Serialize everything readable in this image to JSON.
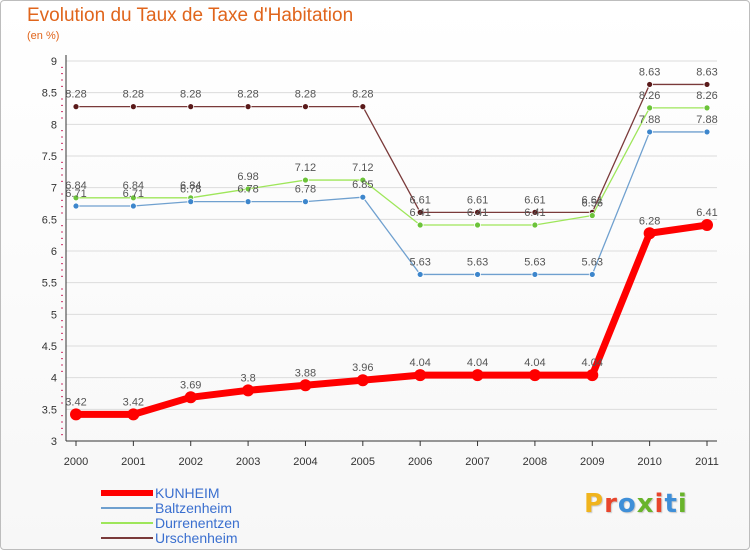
{
  "title": "Evolution du Taux de Taxe d'Habitation",
  "subtitle": "(en %)",
  "colors": {
    "title": "#e0651c",
    "legend_text": "#3a6fcf",
    "axis": "#333333",
    "grid": "#dcdcdc",
    "minor_tick": "#cc3366"
  },
  "logo": {
    "text": "Proxiti",
    "letters": [
      "P",
      "r",
      "o",
      "x",
      "i",
      "t",
      "i"
    ],
    "letter_colors": [
      "#f0b41e",
      "#e8452c",
      "#3f8fd8",
      "#69b42b",
      "#e8452c",
      "#3f8fd8",
      "#69b42b"
    ]
  },
  "chart_data": {
    "type": "line",
    "title": "Evolution du Taux de Taxe d'Habitation",
    "subtitle": "(en %)",
    "categories": [
      "2000",
      "2001",
      "2002",
      "2003",
      "2004",
      "2005",
      "2006",
      "2007",
      "2008",
      "2009",
      "2010",
      "2011"
    ],
    "y_ticks": [
      "3",
      "3.5",
      "4",
      "4.5",
      "5",
      "5.5",
      "6",
      "6.5",
      "7",
      "7.5",
      "8",
      "8.5",
      "9"
    ],
    "ylim": [
      3,
      9
    ],
    "grid": true,
    "legend_position": "bottom-left",
    "series": [
      {
        "name": "KUNHEIM",
        "color": "#ff0000",
        "marker_color": "#ff0000",
        "stroke_width": 7,
        "marker_radius": 6,
        "values": [
          3.42,
          3.42,
          3.69,
          3.8,
          3.88,
          3.96,
          4.04,
          4.04,
          4.04,
          4.04,
          6.28,
          6.41
        ],
        "labels": [
          "3.42",
          "3.42",
          "3.69",
          "3.8",
          "3.88",
          "3.96",
          "4.04",
          "4.04",
          "4.04",
          "4.04",
          "6.28",
          "6.41"
        ]
      },
      {
        "name": "Baltzenheim",
        "color": "#6fa0cf",
        "marker_color": "#3d86cc",
        "stroke_width": 1.3,
        "marker_radius": 3,
        "values": [
          6.71,
          6.71,
          6.78,
          6.78,
          6.78,
          6.85,
          5.63,
          5.63,
          5.63,
          5.63,
          7.88,
          7.88
        ],
        "labels": [
          "6.71",
          "6.71",
          "6.78",
          "6.78",
          "6.78",
          "6.85",
          "5.63",
          "5.63",
          "5.63",
          "5.63",
          "7.88",
          "7.88"
        ]
      },
      {
        "name": "Durrenentzen",
        "color": "#9ee65a",
        "marker_color": "#6cc33a",
        "stroke_width": 1.3,
        "marker_radius": 3,
        "values": [
          6.84,
          6.84,
          6.84,
          6.98,
          7.12,
          7.12,
          6.41,
          6.41,
          6.41,
          6.56,
          8.26,
          8.26
        ],
        "labels": [
          "6.84",
          "6.84",
          "6.84",
          "6.98",
          "7.12",
          "7.12",
          "6.41",
          "6.41",
          "6.41",
          "6.56",
          "8.26",
          "8.26"
        ]
      },
      {
        "name": "Urschenheim",
        "color": "#7a3a3a",
        "marker_color": "#5a1a1a",
        "stroke_width": 1.3,
        "marker_radius": 3,
        "values": [
          8.28,
          8.28,
          8.28,
          8.28,
          8.28,
          8.28,
          6.61,
          6.61,
          6.61,
          6.61,
          8.63,
          8.63
        ],
        "labels": [
          "8.28",
          "8.28",
          "8.28",
          "8.28",
          "8.28",
          "8.28",
          "6.61",
          "6.61",
          "6.61",
          "6.61",
          "8.63",
          "8.63"
        ]
      }
    ]
  }
}
